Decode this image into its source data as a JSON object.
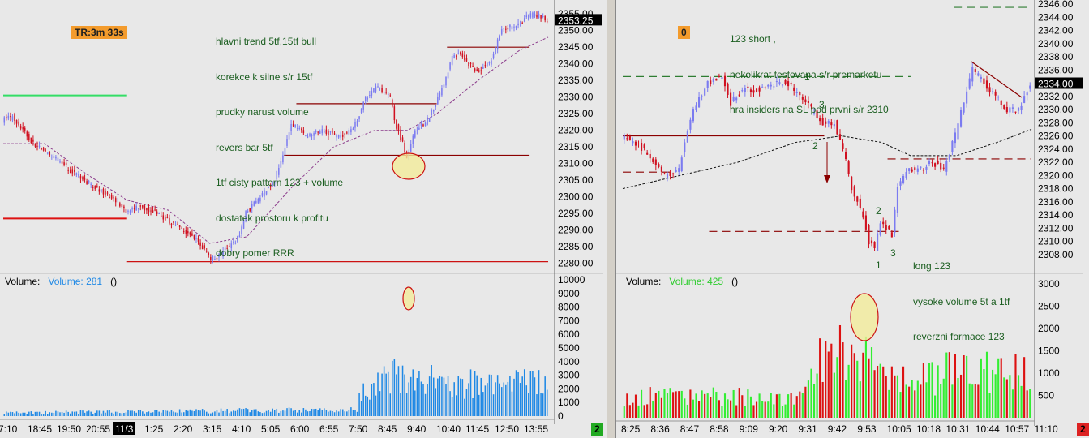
{
  "colors": {
    "bg": "#e8e8e8",
    "up": "#7b7bf0",
    "down": "#d01020",
    "note_text": "#1b5e20",
    "orange": "#f39b2c",
    "vol_blue": "#1e88e5",
    "vol_green": "#33ee33",
    "vol_red": "#dd1111"
  },
  "left": {
    "timer_label": "TR:3m 33s",
    "notes": [
      "hlavni trend 5tf,15tf bull",
      "korekce k silne s/r 15tf",
      "prudky narust volume",
      "revers bar 5tf",
      "1tf cisty pattern 123 + volume",
      "dostatek prostoru k profitu",
      "dobry pomer RRR"
    ],
    "last_price": "2353.25",
    "volume_label": "Volume:",
    "volume_name": "Volume: 281",
    "volume_paren": "()",
    "corner_badge": "2"
  },
  "right": {
    "timer_label": "0",
    "notes_top": [
      "123 short ,",
      "nekolikrat testovana s/r premarketu",
      "hra insiders na SL pod prvni s/r 2310"
    ],
    "notes_bottom": [
      "long 123",
      "vysoke volume 5t a 1tf",
      "reverzni formace 123"
    ],
    "last_price": "2334.00",
    "volume_label": "Volume:",
    "volume_name": "Volume: 425",
    "volume_paren": "()",
    "corner_badge": "2",
    "pattern_marks": [
      "1",
      "3",
      "2",
      "2",
      "3",
      "1"
    ]
  },
  "chart_data": [
    {
      "type": "candlestick",
      "id": "left-price",
      "ylim": [
        2277,
        2357
      ],
      "yticks": [
        2280,
        2285,
        2290,
        2295,
        2300,
        2305,
        2310,
        2315,
        2320,
        2325,
        2330,
        2335,
        2340,
        2345,
        2350,
        2355
      ],
      "time_labels": [
        "7:10",
        "18:45",
        "19:50",
        "20:55",
        "11/3",
        "1:25",
        "2:20",
        "3:15",
        "4:10",
        "5:05",
        "6:00",
        "6:55",
        "7:50",
        "8:45",
        "9:40",
        "10:40",
        "11:45",
        "12:50",
        "13:55"
      ],
      "path_points": [
        [
          0,
          2323
        ],
        [
          5,
          2324
        ],
        [
          15,
          2316
        ],
        [
          25,
          2312
        ],
        [
          35,
          2307
        ],
        [
          45,
          2303
        ],
        [
          55,
          2299
        ],
        [
          60,
          2296
        ],
        [
          68,
          2297
        ],
        [
          72,
          2296
        ],
        [
          80,
          2293
        ],
        [
          88,
          2290
        ],
        [
          95,
          2287
        ],
        [
          100,
          2282
        ],
        [
          103,
          2281
        ],
        [
          108,
          2284
        ],
        [
          115,
          2288
        ],
        [
          118,
          2295
        ],
        [
          125,
          2300
        ],
        [
          132,
          2305
        ],
        [
          136,
          2313
        ],
        [
          140,
          2322
        ],
        [
          148,
          2318
        ],
        [
          155,
          2320
        ],
        [
          162,
          2318
        ],
        [
          170,
          2320
        ],
        [
          176,
          2330
        ],
        [
          182,
          2333
        ],
        [
          188,
          2330
        ],
        [
          190,
          2323
        ],
        [
          194,
          2316
        ],
        [
          196,
          2311
        ],
        [
          200,
          2320
        ],
        [
          205,
          2322
        ],
        [
          210,
          2328
        ],
        [
          214,
          2334
        ],
        [
          218,
          2342
        ],
        [
          222,
          2343
        ],
        [
          226,
          2340
        ],
        [
          230,
          2338
        ],
        [
          236,
          2340
        ],
        [
          242,
          2350
        ],
        [
          250,
          2352
        ],
        [
          257,
          2355
        ],
        [
          262,
          2354
        ],
        [
          264,
          2353
        ]
      ],
      "ma_points": [
        [
          0,
          2316
        ],
        [
          20,
          2316
        ],
        [
          40,
          2307
        ],
        [
          60,
          2299
        ],
        [
          80,
          2296
        ],
        [
          100,
          2286
        ],
        [
          118,
          2288
        ],
        [
          140,
          2303
        ],
        [
          160,
          2315
        ],
        [
          180,
          2320
        ],
        [
          196,
          2320
        ],
        [
          210,
          2325
        ],
        [
          230,
          2335
        ],
        [
          250,
          2344
        ],
        [
          264,
          2348
        ]
      ],
      "levels": [
        {
          "y": 2330.5,
          "from": 0,
          "to": 60,
          "color": "#33dd66"
        },
        {
          "y": 2293.5,
          "from": 0,
          "to": 60,
          "color": "#dd1111"
        },
        {
          "y": 2280.5,
          "from": 60,
          "to": 264,
          "color": "#cc1111"
        },
        {
          "y": 2312.5,
          "from": 136,
          "to": 255,
          "color": "#8b0000"
        },
        {
          "y": 2328,
          "from": 142,
          "to": 210,
          "color": "#8b0000"
        },
        {
          "y": 2345,
          "from": 215,
          "to": 255,
          "color": "#8b0000"
        }
      ],
      "volume_ylim": [
        0,
        10000
      ],
      "volume_ticks": [
        0,
        1000,
        2000,
        3000,
        4000,
        5000,
        6000,
        7000,
        8000,
        9000,
        10000
      ]
    },
    {
      "type": "candlestick",
      "id": "right-price",
      "ylim": [
        2306,
        2346
      ],
      "yticks": [
        2308,
        2310,
        2312,
        2314,
        2316,
        2318,
        2320,
        2322,
        2324,
        2326,
        2328,
        2330,
        2332,
        2334,
        2336,
        2338,
        2340,
        2342,
        2344,
        2346
      ],
      "time_labels": [
        "8:25",
        "8:36",
        "8:47",
        "8:58",
        "9:09",
        "9:20",
        "9:31",
        "9:42",
        "9:53",
        "10:05",
        "10:18",
        "10:31",
        "10:44",
        "10:57",
        "11:10"
      ],
      "path_points": [
        [
          0,
          2326
        ],
        [
          5,
          2325
        ],
        [
          10,
          2323
        ],
        [
          15,
          2320
        ],
        [
          20,
          2321
        ],
        [
          22,
          2325
        ],
        [
          25,
          2330
        ],
        [
          30,
          2334
        ],
        [
          35,
          2335
        ],
        [
          38,
          2331
        ],
        [
          42,
          2333
        ],
        [
          48,
          2333
        ],
        [
          54,
          2334
        ],
        [
          58,
          2334
        ],
        [
          62,
          2332
        ],
        [
          66,
          2330
        ],
        [
          70,
          2328
        ],
        [
          74,
          2328
        ],
        [
          76,
          2325
        ],
        [
          78,
          2322
        ],
        [
          80,
          2318
        ],
        [
          84,
          2314
        ],
        [
          86,
          2310
        ],
        [
          88,
          2309
        ],
        [
          90,
          2313
        ],
        [
          92,
          2312
        ],
        [
          94,
          2311
        ],
        [
          96,
          2318
        ],
        [
          100,
          2321
        ],
        [
          104,
          2321
        ],
        [
          108,
          2322
        ],
        [
          112,
          2321
        ],
        [
          116,
          2326
        ],
        [
          120,
          2333
        ],
        [
          122,
          2336
        ],
        [
          126,
          2334
        ],
        [
          130,
          2332
        ],
        [
          134,
          2330
        ],
        [
          138,
          2330
        ],
        [
          142,
          2334
        ]
      ],
      "ma_points": [
        [
          0,
          2318
        ],
        [
          20,
          2320
        ],
        [
          40,
          2322
        ],
        [
          60,
          2325
        ],
        [
          76,
          2326
        ],
        [
          90,
          2325
        ],
        [
          100,
          2323
        ],
        [
          116,
          2323
        ],
        [
          130,
          2325
        ],
        [
          142,
          2327
        ]
      ],
      "levels": [
        {
          "y": 2335,
          "from": 0,
          "to": 100,
          "color": "#2e7d32",
          "dash": true
        },
        {
          "y": 2345.5,
          "from": 115,
          "to": 142,
          "color": "#2e7d32",
          "dash": true
        },
        {
          "y": 2326,
          "from": 0,
          "to": 70,
          "color": "#8b0000"
        },
        {
          "y": 2320.5,
          "from": 0,
          "to": 18,
          "color": "#8b0000",
          "dash": true
        },
        {
          "y": 2311.5,
          "from": 30,
          "to": 97,
          "color": "#8b0000",
          "dash": true
        },
        {
          "y": 2322.5,
          "from": 92,
          "to": 142,
          "color": "#8b0000",
          "dash": true
        }
      ],
      "volume_ylim": [
        0,
        3000
      ],
      "volume_ticks": [
        500,
        1000,
        1500,
        2000,
        2500,
        3000
      ]
    }
  ]
}
